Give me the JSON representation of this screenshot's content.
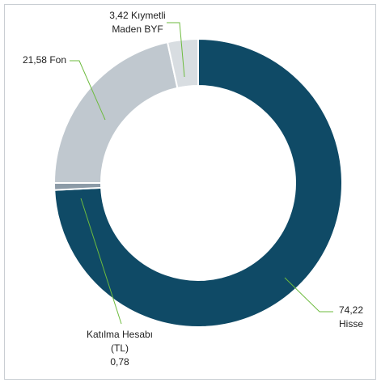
{
  "chart_data": {
    "type": "donut",
    "categories": [
      "Hisse",
      "Katılma Hesabı (TL)",
      "Fon",
      "Kıymetli Maden BYF"
    ],
    "values": [
      74.22,
      0.78,
      21.58,
      3.42
    ],
    "value_labels": [
      "74,22",
      "0,78",
      "21,58",
      "3,42"
    ],
    "colors": [
      "#0f4a66",
      "#8c9ba7",
      "#c0c8cf",
      "#d8dde1"
    ]
  }
}
